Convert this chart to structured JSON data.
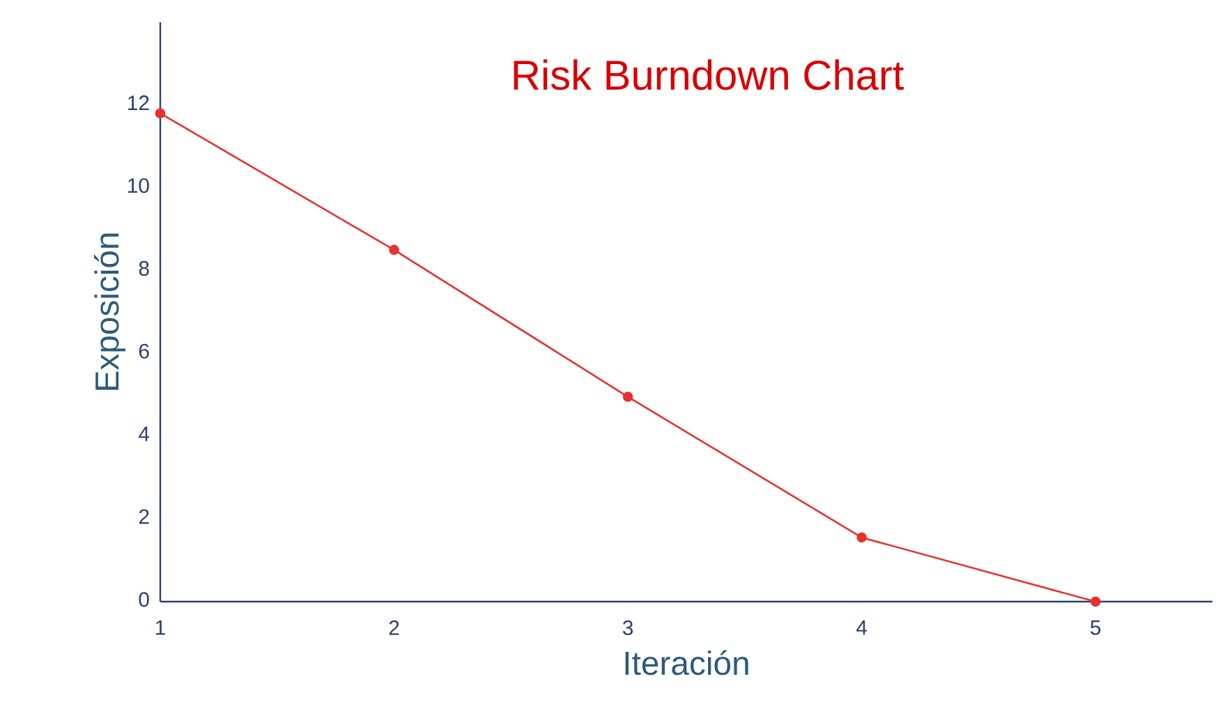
{
  "chart_data": {
    "type": "line",
    "title": "Risk Burndown Chart",
    "xlabel": "Iteración",
    "ylabel": "Exposición",
    "x": [
      1,
      2,
      3,
      4,
      5
    ],
    "series": [
      {
        "color": "#e8302f",
        "values": [
          11.8,
          8.5,
          4.95,
          1.55,
          0
        ]
      }
    ],
    "xlim": [
      1,
      5.5
    ],
    "ylim": [
      0,
      14
    ],
    "xticks": [
      1,
      2,
      3,
      4,
      5
    ],
    "yticks": [
      0,
      2,
      4,
      6,
      8,
      10,
      12
    ],
    "marker": "circle",
    "line_style": "solid",
    "grid": false
  }
}
